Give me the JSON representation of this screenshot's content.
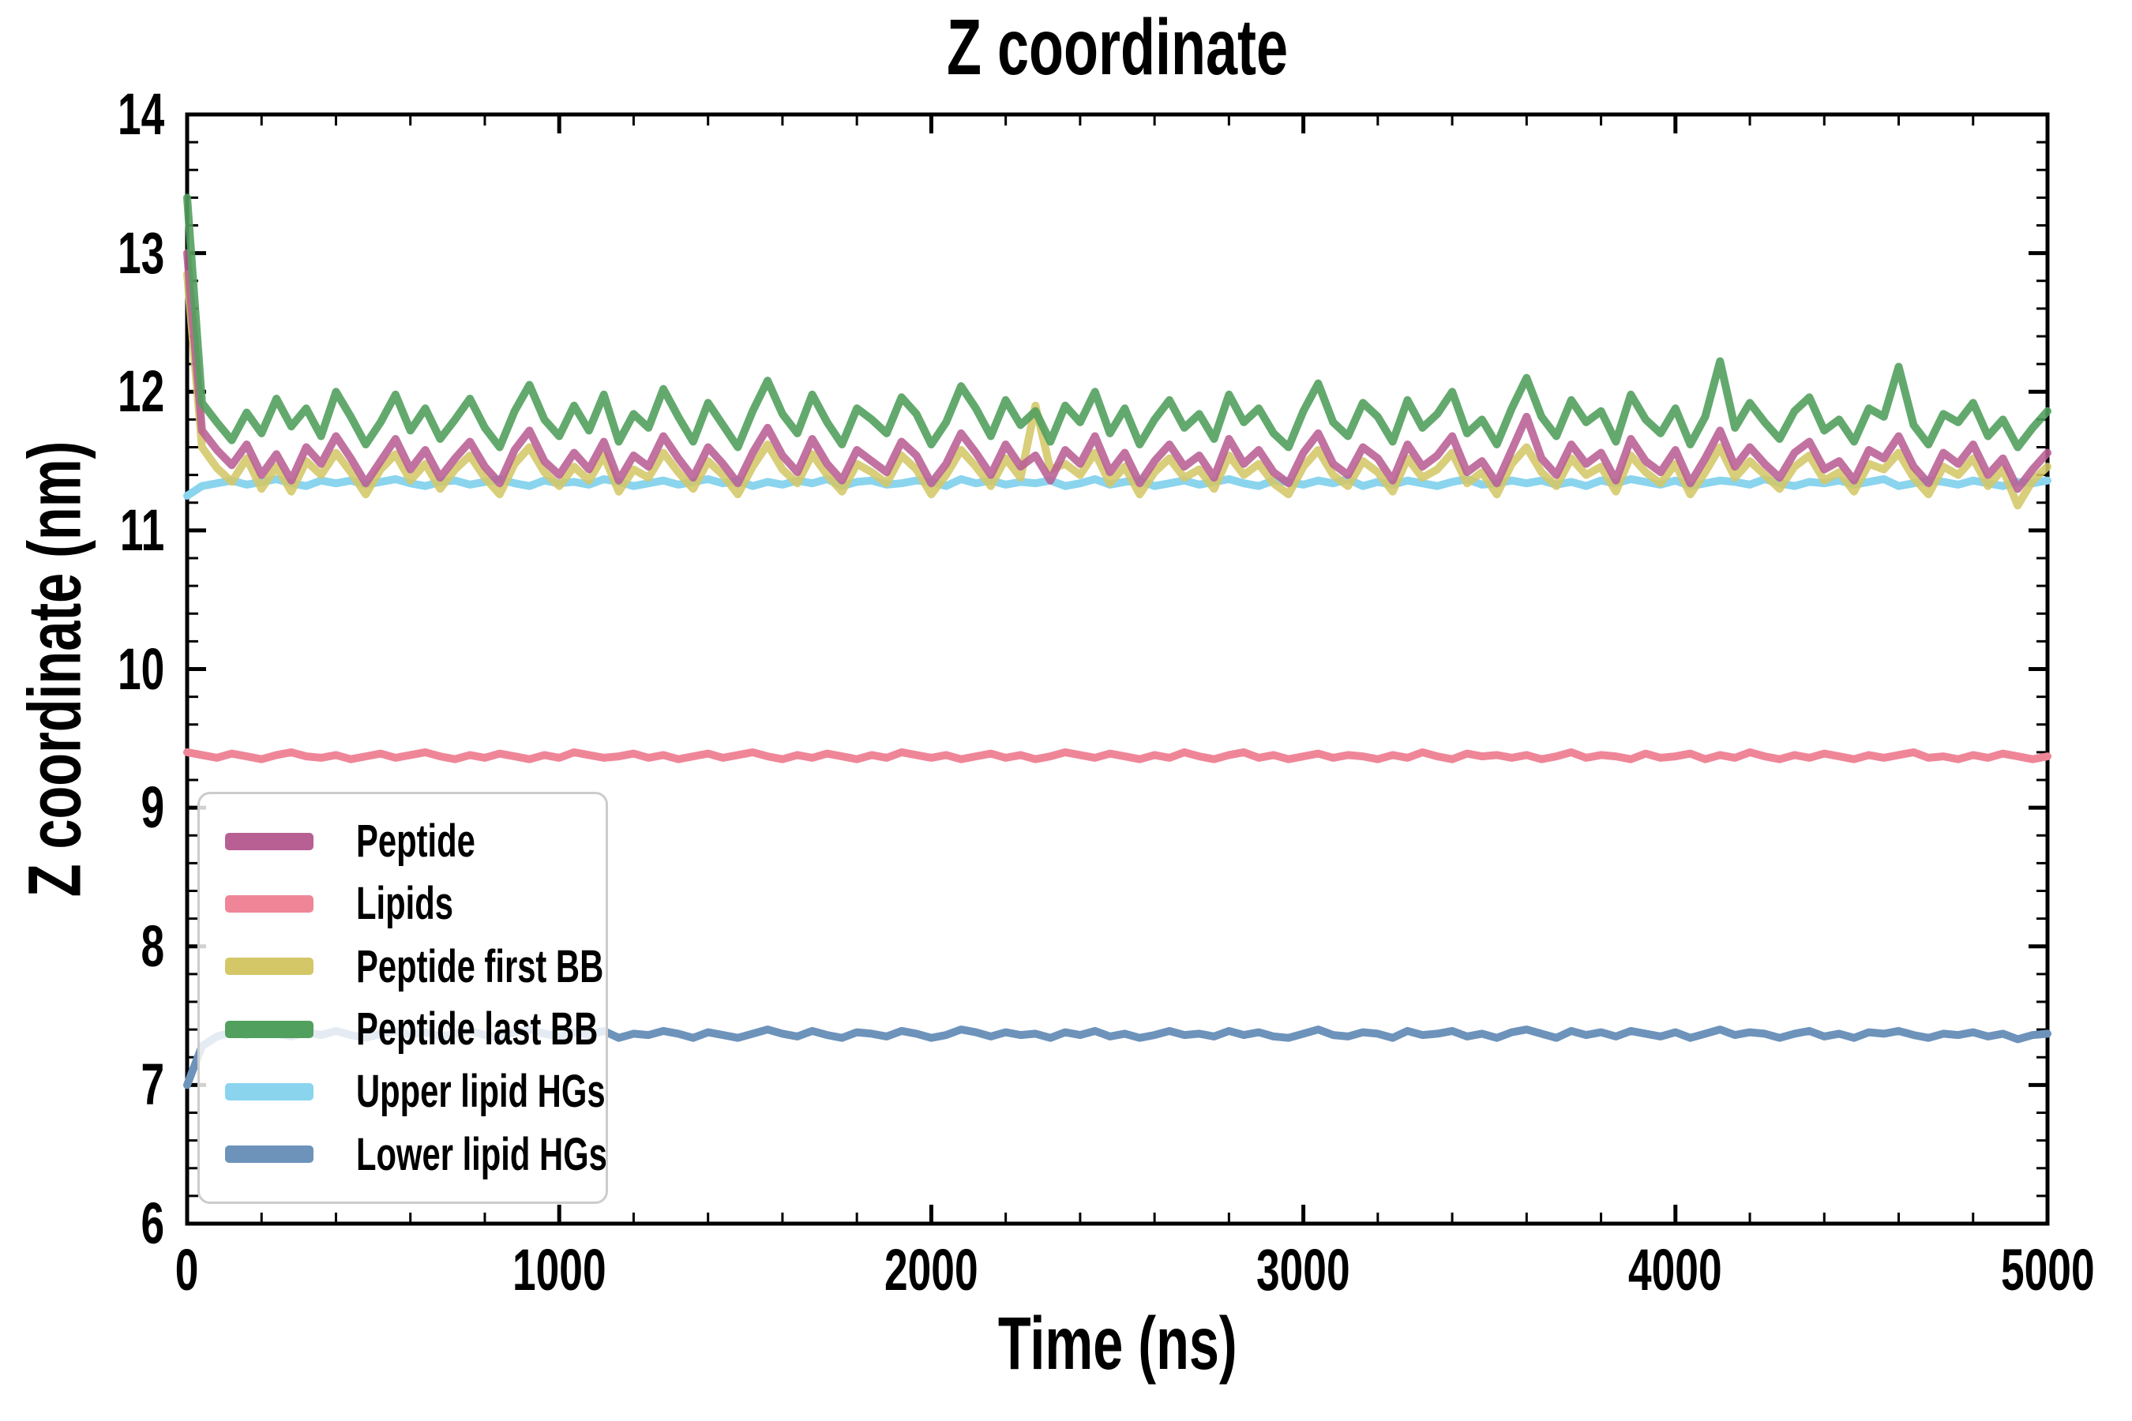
{
  "figure": {
    "background_color": "#ffffff",
    "spine_color": "#000000",
    "legend_border_color": "#cccccc"
  },
  "chart_data": {
    "type": "line",
    "title": "Z coordinate",
    "xlabel": "Time (ns)",
    "ylabel": "Z coordinate (nm)",
    "xlim": [
      0,
      5000
    ],
    "ylim": [
      6,
      14
    ],
    "xticks": [
      0,
      1000,
      2000,
      3000,
      4000,
      5000
    ],
    "yticks": [
      6,
      7,
      8,
      9,
      10,
      11,
      12,
      13,
      14
    ],
    "x_minor_step": 200,
    "y_minor_step": 0.2,
    "grid": false,
    "legend_position": "lower left",
    "x": [
      0,
      40,
      80,
      120,
      160,
      200,
      240,
      280,
      320,
      360,
      400,
      440,
      480,
      520,
      560,
      600,
      640,
      680,
      720,
      760,
      800,
      840,
      880,
      920,
      960,
      1000,
      1040,
      1080,
      1120,
      1160,
      1200,
      1240,
      1280,
      1320,
      1360,
      1400,
      1440,
      1480,
      1520,
      1560,
      1600,
      1640,
      1680,
      1720,
      1760,
      1800,
      1840,
      1880,
      1920,
      1960,
      2000,
      2040,
      2080,
      2120,
      2160,
      2200,
      2240,
      2280,
      2320,
      2360,
      2400,
      2440,
      2480,
      2520,
      2560,
      2600,
      2640,
      2680,
      2720,
      2760,
      2800,
      2840,
      2880,
      2920,
      2960,
      3000,
      3040,
      3080,
      3120,
      3160,
      3200,
      3240,
      3280,
      3320,
      3360,
      3400,
      3440,
      3480,
      3520,
      3560,
      3600,
      3640,
      3680,
      3720,
      3760,
      3800,
      3840,
      3880,
      3920,
      3960,
      4000,
      4040,
      4080,
      4120,
      4160,
      4200,
      4240,
      4280,
      4320,
      4360,
      4400,
      4440,
      4480,
      4520,
      4560,
      4600,
      4640,
      4680,
      4720,
      4760,
      4800,
      4840,
      4880,
      4920,
      4960,
      5000
    ],
    "series": [
      {
        "name": "Peptide",
        "color": "#b85f94",
        "values": [
          13.0,
          11.72,
          11.58,
          11.47,
          11.62,
          11.4,
          11.55,
          11.36,
          11.6,
          11.48,
          11.68,
          11.52,
          11.34,
          11.5,
          11.66,
          11.44,
          11.58,
          11.38,
          11.52,
          11.64,
          11.46,
          11.34,
          11.58,
          11.72,
          11.5,
          11.4,
          11.56,
          11.44,
          11.64,
          11.36,
          11.54,
          11.46,
          11.68,
          11.52,
          11.38,
          11.6,
          11.48,
          11.34,
          11.56,
          11.74,
          11.54,
          11.42,
          11.66,
          11.48,
          11.36,
          11.58,
          11.5,
          11.42,
          11.64,
          11.54,
          11.34,
          11.48,
          11.7,
          11.56,
          11.4,
          11.62,
          11.46,
          11.54,
          11.36,
          11.58,
          11.48,
          11.68,
          11.42,
          11.56,
          11.34,
          11.5,
          11.62,
          11.46,
          11.54,
          11.38,
          11.66,
          11.48,
          11.58,
          11.42,
          11.34,
          11.56,
          11.7,
          11.48,
          11.4,
          11.6,
          11.52,
          11.36,
          11.62,
          11.46,
          11.54,
          11.68,
          11.42,
          11.5,
          11.34,
          11.58,
          11.82,
          11.52,
          11.4,
          11.62,
          11.48,
          11.56,
          11.36,
          11.66,
          11.5,
          11.42,
          11.58,
          11.34,
          11.52,
          11.72,
          11.46,
          11.6,
          11.48,
          11.38,
          11.56,
          11.64,
          11.44,
          11.5,
          11.36,
          11.58,
          11.52,
          11.68,
          11.46,
          11.34,
          11.56,
          11.48,
          11.62,
          11.4,
          11.52,
          11.3,
          11.44,
          11.56
        ]
      },
      {
        "name": "Lipids",
        "color": "#ef8698",
        "values": [
          9.4,
          9.38,
          9.36,
          9.39,
          9.37,
          9.35,
          9.38,
          9.4,
          9.37,
          9.36,
          9.38,
          9.35,
          9.37,
          9.39,
          9.36,
          9.38,
          9.4,
          9.37,
          9.35,
          9.38,
          9.36,
          9.39,
          9.37,
          9.35,
          9.38,
          9.36,
          9.4,
          9.38,
          9.36,
          9.37,
          9.39,
          9.36,
          9.38,
          9.35,
          9.37,
          9.39,
          9.36,
          9.38,
          9.4,
          9.37,
          9.35,
          9.38,
          9.36,
          9.39,
          9.37,
          9.35,
          9.38,
          9.36,
          9.4,
          9.38,
          9.36,
          9.38,
          9.35,
          9.37,
          9.39,
          9.36,
          9.38,
          9.35,
          9.37,
          9.4,
          9.38,
          9.36,
          9.39,
          9.37,
          9.35,
          9.38,
          9.36,
          9.4,
          9.37,
          9.35,
          9.38,
          9.4,
          9.36,
          9.38,
          9.35,
          9.37,
          9.39,
          9.36,
          9.38,
          9.37,
          9.35,
          9.38,
          9.36,
          9.4,
          9.37,
          9.35,
          9.39,
          9.37,
          9.38,
          9.36,
          9.38,
          9.35,
          9.37,
          9.4,
          9.36,
          9.38,
          9.37,
          9.35,
          9.39,
          9.36,
          9.37,
          9.39,
          9.35,
          9.38,
          9.36,
          9.4,
          9.37,
          9.35,
          9.38,
          9.36,
          9.39,
          9.37,
          9.35,
          9.38,
          9.36,
          9.38,
          9.4,
          9.36,
          9.37,
          9.35,
          9.38,
          9.36,
          9.39,
          9.37,
          9.35,
          9.37
        ]
      },
      {
        "name": "Peptide first BB",
        "color": "#d4c768",
        "values": [
          12.85,
          11.6,
          11.45,
          11.35,
          11.52,
          11.3,
          11.46,
          11.28,
          11.5,
          11.4,
          11.56,
          11.42,
          11.26,
          11.44,
          11.55,
          11.36,
          11.48,
          11.3,
          11.44,
          11.54,
          11.38,
          11.26,
          11.48,
          11.6,
          11.42,
          11.32,
          11.46,
          11.36,
          11.54,
          11.28,
          11.44,
          11.38,
          11.56,
          11.42,
          11.3,
          11.5,
          11.4,
          11.26,
          11.46,
          11.62,
          11.44,
          11.34,
          11.55,
          11.4,
          11.28,
          11.48,
          11.42,
          11.34,
          11.54,
          11.44,
          11.26,
          11.4,
          11.58,
          11.46,
          11.32,
          11.52,
          11.38,
          11.9,
          11.44,
          11.48,
          11.4,
          11.56,
          11.34,
          11.46,
          11.26,
          11.42,
          11.52,
          11.38,
          11.44,
          11.3,
          11.54,
          11.4,
          11.48,
          11.34,
          11.26,
          11.46,
          11.58,
          11.4,
          11.32,
          11.5,
          11.42,
          11.28,
          11.52,
          11.38,
          11.44,
          11.56,
          11.34,
          11.42,
          11.26,
          11.48,
          11.6,
          11.42,
          11.32,
          11.52,
          11.4,
          11.46,
          11.28,
          11.54,
          11.42,
          11.34,
          11.48,
          11.26,
          11.42,
          11.6,
          11.38,
          11.5,
          11.4,
          11.3,
          11.46,
          11.54,
          11.36,
          11.42,
          11.28,
          11.48,
          11.44,
          11.56,
          11.38,
          11.26,
          11.46,
          11.4,
          11.52,
          11.32,
          11.44,
          11.18,
          11.36,
          11.46
        ]
      },
      {
        "name": "Peptide last BB",
        "color": "#52a05e",
        "values": [
          13.4,
          11.92,
          11.78,
          11.65,
          11.85,
          11.7,
          11.95,
          11.75,
          11.88,
          11.68,
          12.0,
          11.82,
          11.62,
          11.78,
          11.98,
          11.72,
          11.88,
          11.66,
          11.8,
          11.95,
          11.74,
          11.6,
          11.86,
          12.05,
          11.8,
          11.68,
          11.9,
          11.72,
          11.98,
          11.64,
          11.84,
          11.74,
          12.02,
          11.82,
          11.64,
          11.92,
          11.76,
          11.6,
          11.86,
          12.08,
          11.84,
          11.7,
          11.98,
          11.78,
          11.62,
          11.88,
          11.8,
          11.7,
          11.96,
          11.84,
          11.62,
          11.78,
          12.04,
          11.88,
          11.68,
          11.94,
          11.76,
          11.86,
          11.64,
          11.9,
          11.78,
          12.0,
          11.7,
          11.88,
          11.62,
          11.8,
          11.94,
          11.74,
          11.84,
          11.66,
          11.98,
          11.78,
          11.88,
          11.7,
          11.6,
          11.86,
          12.06,
          11.78,
          11.68,
          11.92,
          11.82,
          11.64,
          11.94,
          11.74,
          11.84,
          12.0,
          11.7,
          11.8,
          11.62,
          11.88,
          12.1,
          11.82,
          11.68,
          11.94,
          11.78,
          11.86,
          11.64,
          11.98,
          11.8,
          11.7,
          11.88,
          11.62,
          11.82,
          12.22,
          11.74,
          11.92,
          11.78,
          11.66,
          11.86,
          11.96,
          11.72,
          11.8,
          11.64,
          11.88,
          11.82,
          12.18,
          11.76,
          11.62,
          11.84,
          11.78,
          11.92,
          11.68,
          11.8,
          11.6,
          11.74,
          11.86
        ]
      },
      {
        "name": "Upper lipid HGs",
        "color": "#8ad4ee",
        "values": [
          11.25,
          11.32,
          11.34,
          11.36,
          11.33,
          11.35,
          11.37,
          11.34,
          11.32,
          11.36,
          11.34,
          11.36,
          11.33,
          11.35,
          11.37,
          11.34,
          11.32,
          11.35,
          11.36,
          11.33,
          11.35,
          11.37,
          11.34,
          11.32,
          11.36,
          11.34,
          11.35,
          11.33,
          11.37,
          11.35,
          11.32,
          11.34,
          11.36,
          11.33,
          11.35,
          11.37,
          11.34,
          11.36,
          11.32,
          11.35,
          11.33,
          11.36,
          11.34,
          11.37,
          11.32,
          11.35,
          11.36,
          11.33,
          11.34,
          11.36,
          11.35,
          11.32,
          11.37,
          11.34,
          11.36,
          11.33,
          11.35,
          11.34,
          11.36,
          11.32,
          11.34,
          11.37,
          11.33,
          11.35,
          11.36,
          11.32,
          11.34,
          11.36,
          11.33,
          11.35,
          11.37,
          11.34,
          11.32,
          11.36,
          11.35,
          11.33,
          11.36,
          11.34,
          11.37,
          11.32,
          11.35,
          11.33,
          11.36,
          11.34,
          11.32,
          11.35,
          11.37,
          11.33,
          11.34,
          11.36,
          11.34,
          11.36,
          11.33,
          11.35,
          11.32,
          11.36,
          11.34,
          11.37,
          11.35,
          11.33,
          11.36,
          11.32,
          11.34,
          11.36,
          11.35,
          11.33,
          11.37,
          11.34,
          11.32,
          11.35,
          11.34,
          11.36,
          11.33,
          11.35,
          11.37,
          11.32,
          11.34,
          11.36,
          11.35,
          11.33,
          11.36,
          11.34,
          11.32,
          11.35,
          11.34,
          11.36
        ]
      },
      {
        "name": "Lower lipid HGs",
        "color": "#6d93bb",
        "values": [
          7.0,
          7.28,
          7.35,
          7.38,
          7.36,
          7.39,
          7.37,
          7.35,
          7.38,
          7.36,
          7.39,
          7.36,
          7.34,
          7.37,
          7.39,
          7.36,
          7.38,
          7.35,
          7.37,
          7.39,
          7.36,
          7.34,
          7.38,
          7.4,
          7.37,
          7.35,
          7.38,
          7.36,
          7.39,
          7.34,
          7.37,
          7.36,
          7.39,
          7.37,
          7.34,
          7.38,
          7.36,
          7.34,
          7.37,
          7.4,
          7.37,
          7.35,
          7.39,
          7.36,
          7.34,
          7.38,
          7.37,
          7.35,
          7.39,
          7.37,
          7.34,
          7.36,
          7.4,
          7.38,
          7.35,
          7.38,
          7.36,
          7.37,
          7.34,
          7.38,
          7.36,
          7.39,
          7.35,
          7.37,
          7.34,
          7.36,
          7.39,
          7.36,
          7.37,
          7.35,
          7.39,
          7.36,
          7.38,
          7.35,
          7.34,
          7.37,
          7.4,
          7.36,
          7.35,
          7.38,
          7.37,
          7.34,
          7.39,
          7.36,
          7.37,
          7.39,
          7.35,
          7.37,
          7.34,
          7.38,
          7.4,
          7.37,
          7.34,
          7.39,
          7.36,
          7.38,
          7.35,
          7.39,
          7.37,
          7.35,
          7.38,
          7.34,
          7.37,
          7.4,
          7.36,
          7.38,
          7.37,
          7.34,
          7.37,
          7.39,
          7.35,
          7.37,
          7.34,
          7.38,
          7.37,
          7.39,
          7.36,
          7.34,
          7.37,
          7.36,
          7.38,
          7.35,
          7.37,
          7.33,
          7.36,
          7.37
        ]
      }
    ]
  }
}
